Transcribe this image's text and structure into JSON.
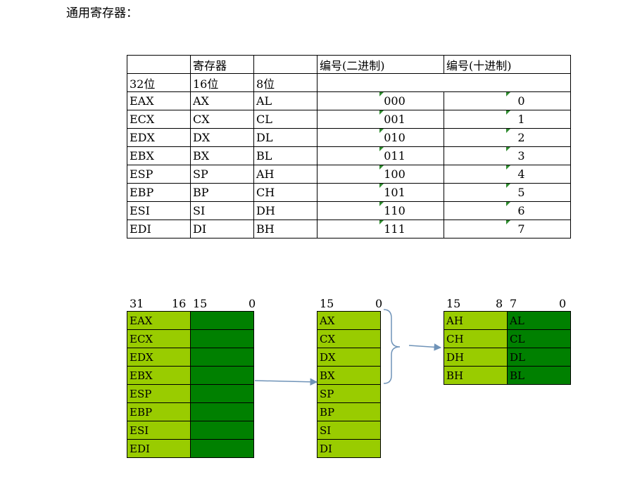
{
  "heading": "通用寄存器：",
  "table": {
    "header1": [
      "",
      "寄存器",
      "",
      "编号(二进制)",
      "编号(十进制)"
    ],
    "header2": [
      "32位",
      "16位",
      "8位"
    ],
    "rows": [
      {
        "r32": "EAX",
        "r16": "AX",
        "r8": "AL",
        "bin": "000",
        "dec": "0"
      },
      {
        "r32": "ECX",
        "r16": "CX",
        "r8": "CL",
        "bin": "001",
        "dec": "1"
      },
      {
        "r32": "EDX",
        "r16": "DX",
        "r8": "DL",
        "bin": "010",
        "dec": "2"
      },
      {
        "r32": "EBX",
        "r16": "BX",
        "r8": "BL",
        "bin": "011",
        "dec": "3"
      },
      {
        "r32": "ESP",
        "r16": "SP",
        "r8": "AH",
        "bin": "100",
        "dec": "4"
      },
      {
        "r32": "EBP",
        "r16": "BP",
        "r8": "CH",
        "bin": "101",
        "dec": "5"
      },
      {
        "r32": "ESI",
        "r16": "SI",
        "r8": "DH",
        "bin": "110",
        "dec": "6"
      },
      {
        "r32": "EDI",
        "r16": "DI",
        "r8": "BH",
        "bin": "111",
        "dec": "7"
      }
    ]
  },
  "diagram": {
    "bits32": [
      "31",
      "16",
      "15",
      "0"
    ],
    "regs32": [
      "EAX",
      "ECX",
      "EDX",
      "EBX",
      "ESP",
      "EBP",
      "ESI",
      "EDI"
    ],
    "bits16": [
      "15",
      "0"
    ],
    "regs16": [
      "AX",
      "CX",
      "DX",
      "BX",
      "SP",
      "BP",
      "SI",
      "DI"
    ],
    "bits8": [
      "15",
      "8",
      "7",
      "0"
    ],
    "regs8": [
      {
        "high": "AH",
        "low": "AL"
      },
      {
        "high": "CH",
        "low": "CL"
      },
      {
        "high": "DH",
        "low": "DL"
      },
      {
        "high": "BH",
        "low": "BL"
      }
    ],
    "colors": {
      "light": "#99cc00",
      "dark": "#008000",
      "arrow": "#6f93b8"
    }
  }
}
